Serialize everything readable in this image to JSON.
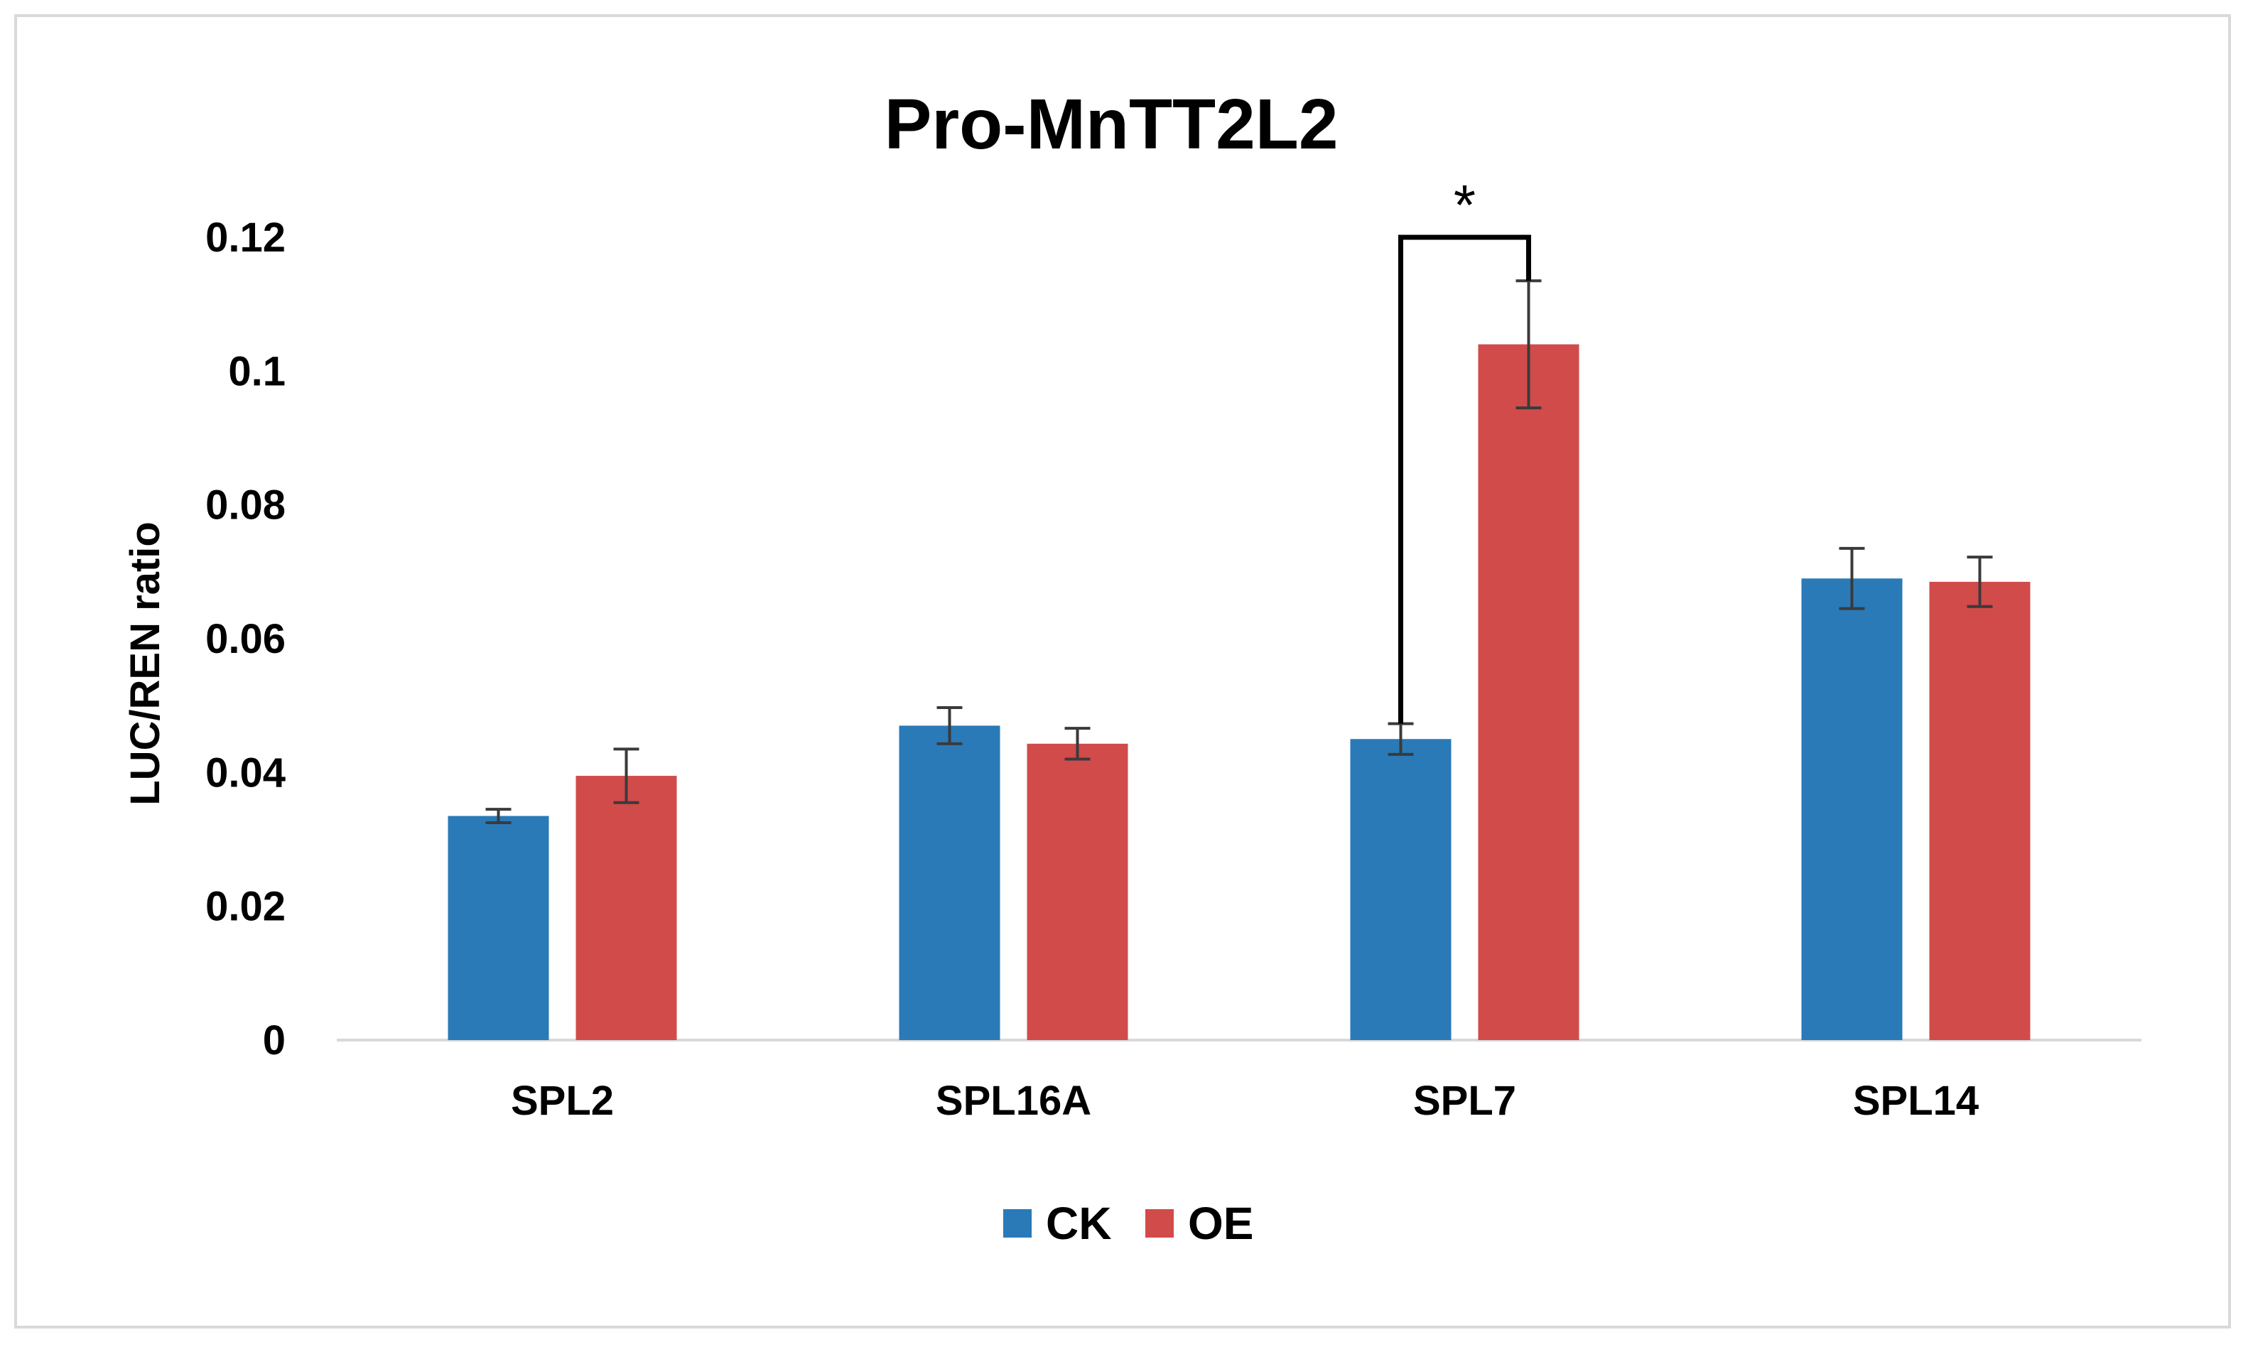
{
  "colors": {
    "ck": "#2a7ab8",
    "oe": "#d14b4b",
    "axis": "#d9d9d9",
    "error": "#3a3a3a",
    "bracket": "#000000"
  },
  "chart_data": {
    "type": "bar",
    "title": "Pro-MnTT2L2",
    "xlabel": "",
    "ylabel": "LUC/REN ratio",
    "ylim": [
      0,
      0.12
    ],
    "yticks": [
      "0",
      "0.02",
      "0.04",
      "0.06",
      "0.08",
      "0.1",
      "0.12"
    ],
    "categories": [
      "SPL2",
      "SPL16A",
      "SPL7",
      "SPL14"
    ],
    "series": [
      {
        "name": "CK",
        "values": [
          0.0335,
          0.047,
          0.045,
          0.069
        ],
        "errors": [
          0.001,
          0.0027,
          0.0023,
          0.0045
        ]
      },
      {
        "name": "OE",
        "values": [
          0.0395,
          0.0443,
          0.104,
          0.0685
        ],
        "errors": [
          0.004,
          0.0023,
          0.0095,
          0.0037
        ]
      }
    ],
    "significance": [
      {
        "category": "SPL7",
        "label": "*",
        "y": 0.12
      }
    ],
    "legend_position": "bottom"
  }
}
